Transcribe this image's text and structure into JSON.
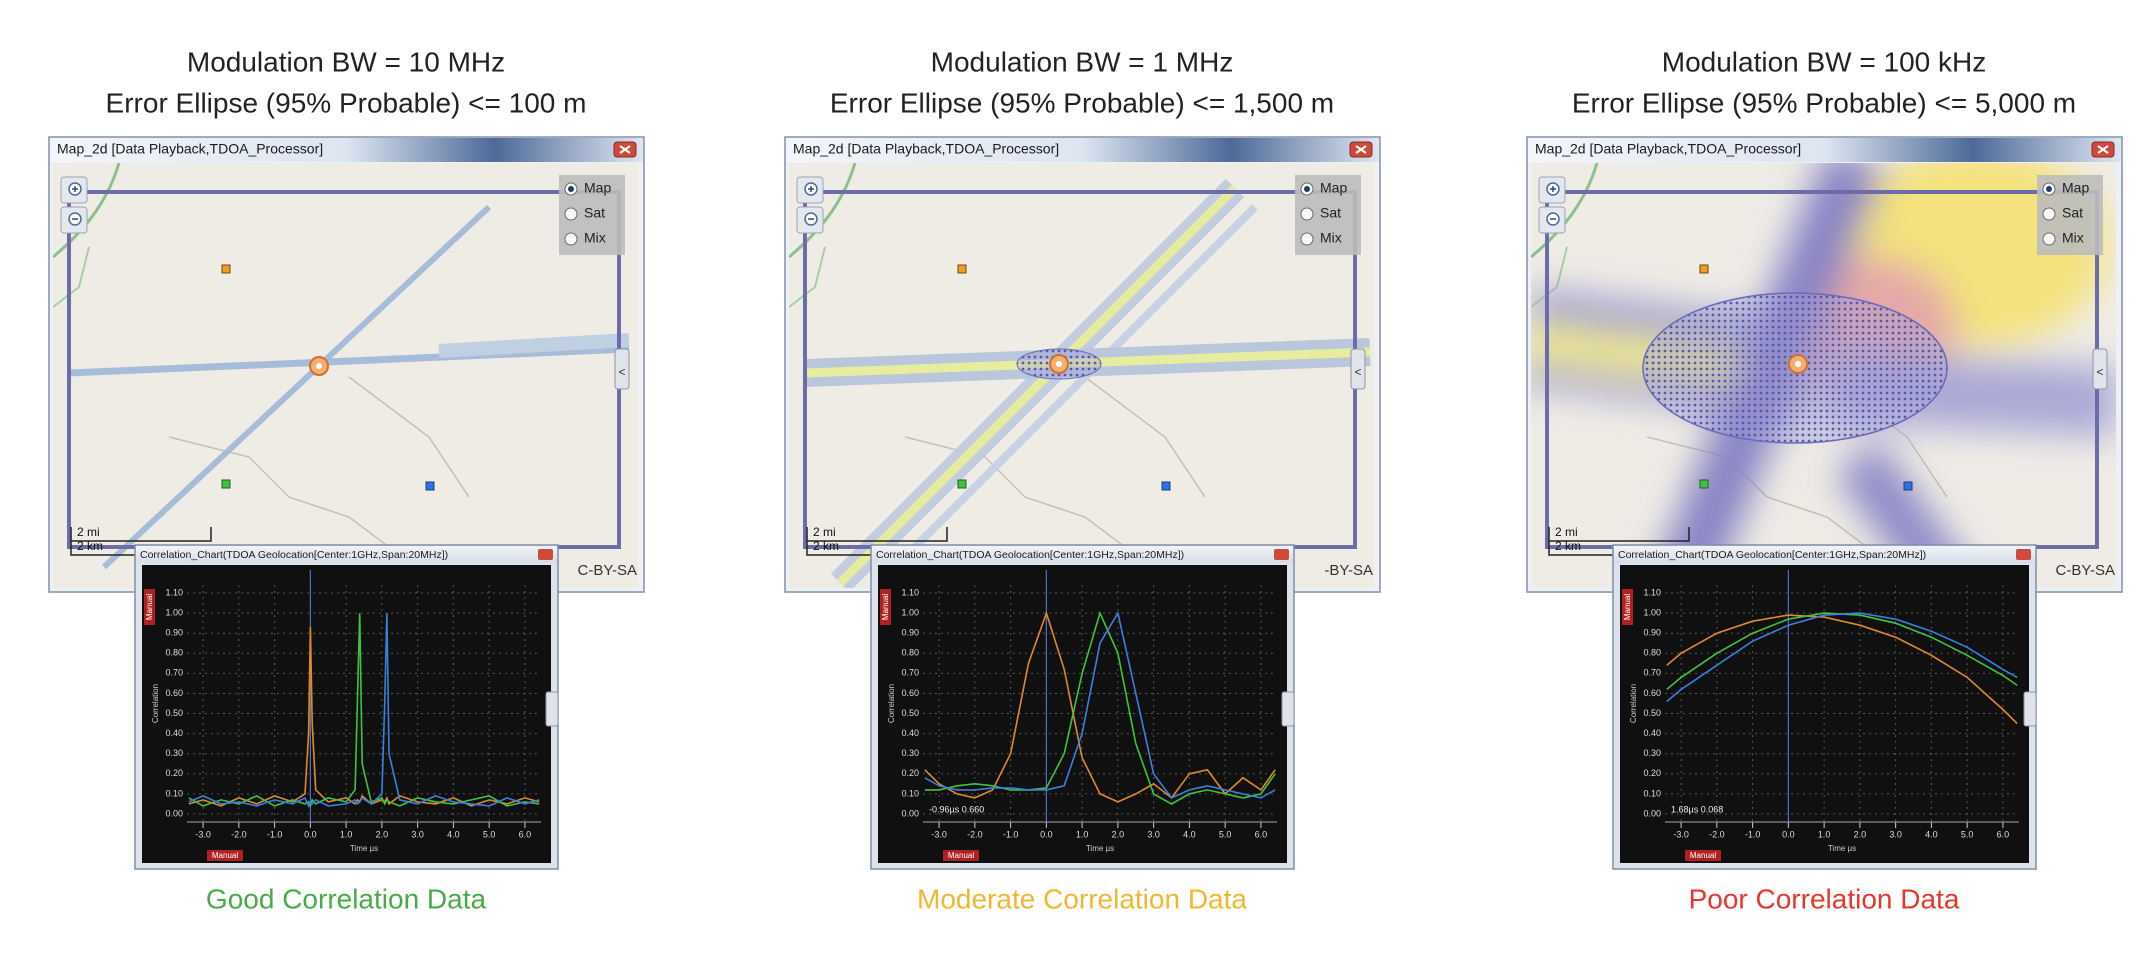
{
  "panels": [
    {
      "title": [
        "Modulation BW = 10 MHz",
        "Error Ellipse (95% Probable) <= 100 m"
      ],
      "map": {
        "window_title": "Map_2d [Data Playback,TDOA_Processor]",
        "layers": [
          "Map",
          "Sat",
          "Mix"
        ],
        "selected_layer": 0,
        "scale": [
          "2 mi",
          "2 km"
        ],
        "attribution": "C-BY-SA"
      },
      "chart": {
        "type": "line",
        "window_title": "Correlation_Chart(TDOA Geolocation[Center:1GHz,Span:20MHz])",
        "tags": [
          "Manual",
          "Manual"
        ],
        "y_label": "Correlation",
        "x_label": "Time µs",
        "xlim": [
          -3.45,
          6.45
        ],
        "ylim": [
          -0.04,
          1.14
        ],
        "xticks": [
          {
            "value": -3,
            "label": "-3.0"
          },
          {
            "value": -2,
            "label": "-2.0"
          },
          {
            "value": -1,
            "label": "-1.0"
          },
          {
            "value": 0,
            "label": "0.0"
          },
          {
            "value": 1,
            "label": "1.0"
          },
          {
            "value": 2,
            "label": "2.0"
          },
          {
            "value": 3,
            "label": "3.0"
          },
          {
            "value": 4,
            "label": "4.0"
          },
          {
            "value": 5,
            "label": "5.0"
          },
          {
            "value": 6,
            "label": "6.0"
          }
        ],
        "yticks": [
          {
            "value": 0,
            "label": "0.00"
          },
          {
            "value": 0.1,
            "label": "0.10"
          },
          {
            "value": 0.2,
            "label": "0.20"
          },
          {
            "value": 0.3,
            "label": "0.30"
          },
          {
            "value": 0.4,
            "label": "0.40"
          },
          {
            "value": 0.5,
            "label": "0.50"
          },
          {
            "value": 0.6,
            "label": "0.60"
          },
          {
            "value": 0.7,
            "label": "0.70"
          },
          {
            "value": 0.8,
            "label": "0.80"
          },
          {
            "value": 0.9,
            "label": "0.90"
          },
          {
            "value": 1,
            "label": "1.00"
          },
          {
            "value": 1.1,
            "label": "1.10"
          }
        ],
        "cursor_x": 0,
        "x": [
          -3.4,
          -3.0,
          -2.5,
          -2.0,
          -1.5,
          -1.0,
          -0.5,
          -0.15,
          -0.05,
          0.0,
          0.05,
          0.15,
          0.5,
          1.0,
          1.25,
          1.32,
          1.38,
          1.45,
          1.7,
          2.0,
          2.08,
          2.14,
          2.2,
          2.5,
          3.0,
          3.5,
          4.0,
          4.5,
          5.0,
          5.5,
          6.0,
          6.4
        ],
        "series": [
          {
            "color": "#e0892c",
            "values": [
              0.05,
              0.07,
              0.04,
              0.08,
              0.05,
              0.09,
              0.06,
              0.1,
              0.4,
              0.93,
              0.45,
              0.12,
              0.06,
              0.08,
              0.05,
              0.07,
              0.06,
              0.09,
              0.05,
              0.07,
              0.06,
              0.08,
              0.05,
              0.09,
              0.06,
              0.05,
              0.08,
              0.04,
              0.07,
              0.05,
              0.08,
              0.06
            ]
          },
          {
            "color": "#3ec43e",
            "values": [
              0.08,
              0.04,
              0.07,
              0.05,
              0.09,
              0.04,
              0.07,
              0.05,
              0.06,
              0.04,
              0.07,
              0.05,
              0.08,
              0.06,
              0.12,
              0.6,
              1.0,
              0.25,
              0.06,
              0.08,
              0.05,
              0.07,
              0.06,
              0.04,
              0.08,
              0.06,
              0.05,
              0.07,
              0.09,
              0.04,
              0.06,
              0.05
            ]
          },
          {
            "color": "#3b7fe0",
            "values": [
              0.06,
              0.09,
              0.05,
              0.06,
              0.04,
              0.07,
              0.05,
              0.08,
              0.04,
              0.06,
              0.05,
              0.07,
              0.04,
              0.05,
              0.07,
              0.05,
              0.06,
              0.08,
              0.05,
              0.1,
              0.55,
              1.0,
              0.3,
              0.07,
              0.05,
              0.09,
              0.06,
              0.05,
              0.04,
              0.08,
              0.05,
              0.07
            ]
          }
        ]
      },
      "caption": "Good Correlation Data",
      "caption_color": "#45ad45"
    },
    {
      "title": [
        "Modulation BW = 1 MHz",
        "Error Ellipse (95% Probable) <= 1,500 m"
      ],
      "map": {
        "window_title": "Map_2d [Data Playback,TDOA_Processor]",
        "layers": [
          "Map",
          "Sat",
          "Mix"
        ],
        "selected_layer": 0,
        "scale": [
          "2 mi",
          "2 km"
        ],
        "attribution": "-BY-SA"
      },
      "chart": {
        "type": "line",
        "window_title": "Correlation_Chart(TDOA Geolocation[Center:1GHz,Span:20MHz])",
        "tags": [
          "Manual",
          "Manual"
        ],
        "y_label": "Correlation",
        "x_label": "Time µs",
        "readout": "-0.96µs 0.660",
        "xlim": [
          -3.45,
          6.45
        ],
        "ylim": [
          -0.04,
          1.14
        ],
        "xticks": [
          {
            "value": -3,
            "label": "-3.0"
          },
          {
            "value": -2,
            "label": "-2.0"
          },
          {
            "value": -1,
            "label": "-1.0"
          },
          {
            "value": 0,
            "label": "0.0"
          },
          {
            "value": 1,
            "label": "1.0"
          },
          {
            "value": 2,
            "label": "2.0"
          },
          {
            "value": 3,
            "label": "3.0"
          },
          {
            "value": 4,
            "label": "4.0"
          },
          {
            "value": 5,
            "label": "5.0"
          },
          {
            "value": 6,
            "label": "6.0"
          }
        ],
        "yticks": [
          {
            "value": 0,
            "label": "0.00"
          },
          {
            "value": 0.1,
            "label": "0.10"
          },
          {
            "value": 0.2,
            "label": "0.20"
          },
          {
            "value": 0.3,
            "label": "0.30"
          },
          {
            "value": 0.4,
            "label": "0.40"
          },
          {
            "value": 0.5,
            "label": "0.50"
          },
          {
            "value": 0.6,
            "label": "0.60"
          },
          {
            "value": 0.7,
            "label": "0.70"
          },
          {
            "value": 0.8,
            "label": "0.80"
          },
          {
            "value": 0.9,
            "label": "0.90"
          },
          {
            "value": 1,
            "label": "1.00"
          },
          {
            "value": 1.1,
            "label": "1.10"
          }
        ],
        "cursor_x": 0,
        "x": [
          -3.4,
          -3.0,
          -2.5,
          -2.0,
          -1.5,
          -1.0,
          -0.5,
          0,
          0.5,
          1.0,
          1.5,
          2.0,
          2.5,
          3.0,
          3.5,
          4.0,
          4.5,
          5.0,
          5.5,
          6.0,
          6.4
        ],
        "series": [
          {
            "color": "#e0892c",
            "values": [
              0.22,
              0.15,
              0.1,
              0.08,
              0.12,
              0.3,
              0.75,
              1.0,
              0.72,
              0.28,
              0.1,
              0.06,
              0.1,
              0.15,
              0.08,
              0.2,
              0.22,
              0.1,
              0.18,
              0.12,
              0.22
            ]
          },
          {
            "color": "#3ec43e",
            "values": [
              0.12,
              0.12,
              0.14,
              0.15,
              0.14,
              0.12,
              0.12,
              0.13,
              0.3,
              0.7,
              1.0,
              0.8,
              0.35,
              0.1,
              0.05,
              0.1,
              0.12,
              0.1,
              0.08,
              0.1,
              0.2
            ]
          },
          {
            "color": "#3b7fe0",
            "values": [
              0.18,
              0.14,
              0.12,
              0.12,
              0.13,
              0.13,
              0.12,
              0.12,
              0.14,
              0.4,
              0.85,
              1.0,
              0.6,
              0.2,
              0.08,
              0.12,
              0.14,
              0.12,
              0.1,
              0.08,
              0.12
            ]
          }
        ]
      },
      "caption": "Moderate Correlation Data",
      "caption_color": "#f2b630"
    },
    {
      "title": [
        "Modulation BW = 100 kHz",
        "Error Ellipse (95% Probable) <= 5,000 m"
      ],
      "map": {
        "window_title": "Map_2d [Data Playback,TDOA_Processor]",
        "layers": [
          "Map",
          "Sat",
          "Mix"
        ],
        "selected_layer": 0,
        "scale": [
          "2 mi",
          "2 km"
        ],
        "attribution": "C-BY-SA"
      },
      "chart": {
        "type": "line",
        "window_title": "Correlation_Chart(TDOA Geolocation[Center:1GHz,Span:20MHz])",
        "tags": [
          "Manual",
          "Manual"
        ],
        "y_label": "Correlation",
        "x_label": "Time µs",
        "readout": "1.68µs 0.068",
        "xlim": [
          -3.45,
          6.45
        ],
        "ylim": [
          -0.04,
          1.14
        ],
        "xticks": [
          {
            "value": -3,
            "label": "-3.0"
          },
          {
            "value": -2,
            "label": "-2.0"
          },
          {
            "value": -1,
            "label": "-1.0"
          },
          {
            "value": 0,
            "label": "0.0"
          },
          {
            "value": 1,
            "label": "1.0"
          },
          {
            "value": 2,
            "label": "2.0"
          },
          {
            "value": 3,
            "label": "3.0"
          },
          {
            "value": 4,
            "label": "4.0"
          },
          {
            "value": 5,
            "label": "5.0"
          },
          {
            "value": 6,
            "label": "6.0"
          }
        ],
        "yticks": [
          {
            "value": 0,
            "label": "0.00"
          },
          {
            "value": 0.1,
            "label": "0.10"
          },
          {
            "value": 0.2,
            "label": "0.20"
          },
          {
            "value": 0.3,
            "label": "0.30"
          },
          {
            "value": 0.4,
            "label": "0.40"
          },
          {
            "value": 0.5,
            "label": "0.50"
          },
          {
            "value": 0.6,
            "label": "0.60"
          },
          {
            "value": 0.7,
            "label": "0.70"
          },
          {
            "value": 0.8,
            "label": "0.80"
          },
          {
            "value": 0.9,
            "label": "0.90"
          },
          {
            "value": 1,
            "label": "1.00"
          },
          {
            "value": 1.1,
            "label": "1.10"
          }
        ],
        "cursor_x": 0,
        "x": [
          -3.4,
          -3.0,
          -2.0,
          -1.0,
          0,
          1.0,
          2.0,
          3.0,
          4.0,
          5.0,
          6.0,
          6.4
        ],
        "series": [
          {
            "color": "#e0892c",
            "values": [
              0.74,
              0.8,
              0.9,
              0.96,
              0.99,
              0.98,
              0.94,
              0.88,
              0.79,
              0.68,
              0.52,
              0.45
            ]
          },
          {
            "color": "#3ec43e",
            "values": [
              0.62,
              0.68,
              0.8,
              0.9,
              0.97,
              1.0,
              0.99,
              0.95,
              0.88,
              0.79,
              0.69,
              0.64
            ]
          },
          {
            "color": "#3b7fe0",
            "values": [
              0.56,
              0.62,
              0.74,
              0.86,
              0.94,
              0.99,
              1.0,
              0.97,
              0.91,
              0.83,
              0.72,
              0.68
            ]
          }
        ]
      },
      "caption": "Poor Correlation Data",
      "caption_color": "#e8372a"
    }
  ]
}
